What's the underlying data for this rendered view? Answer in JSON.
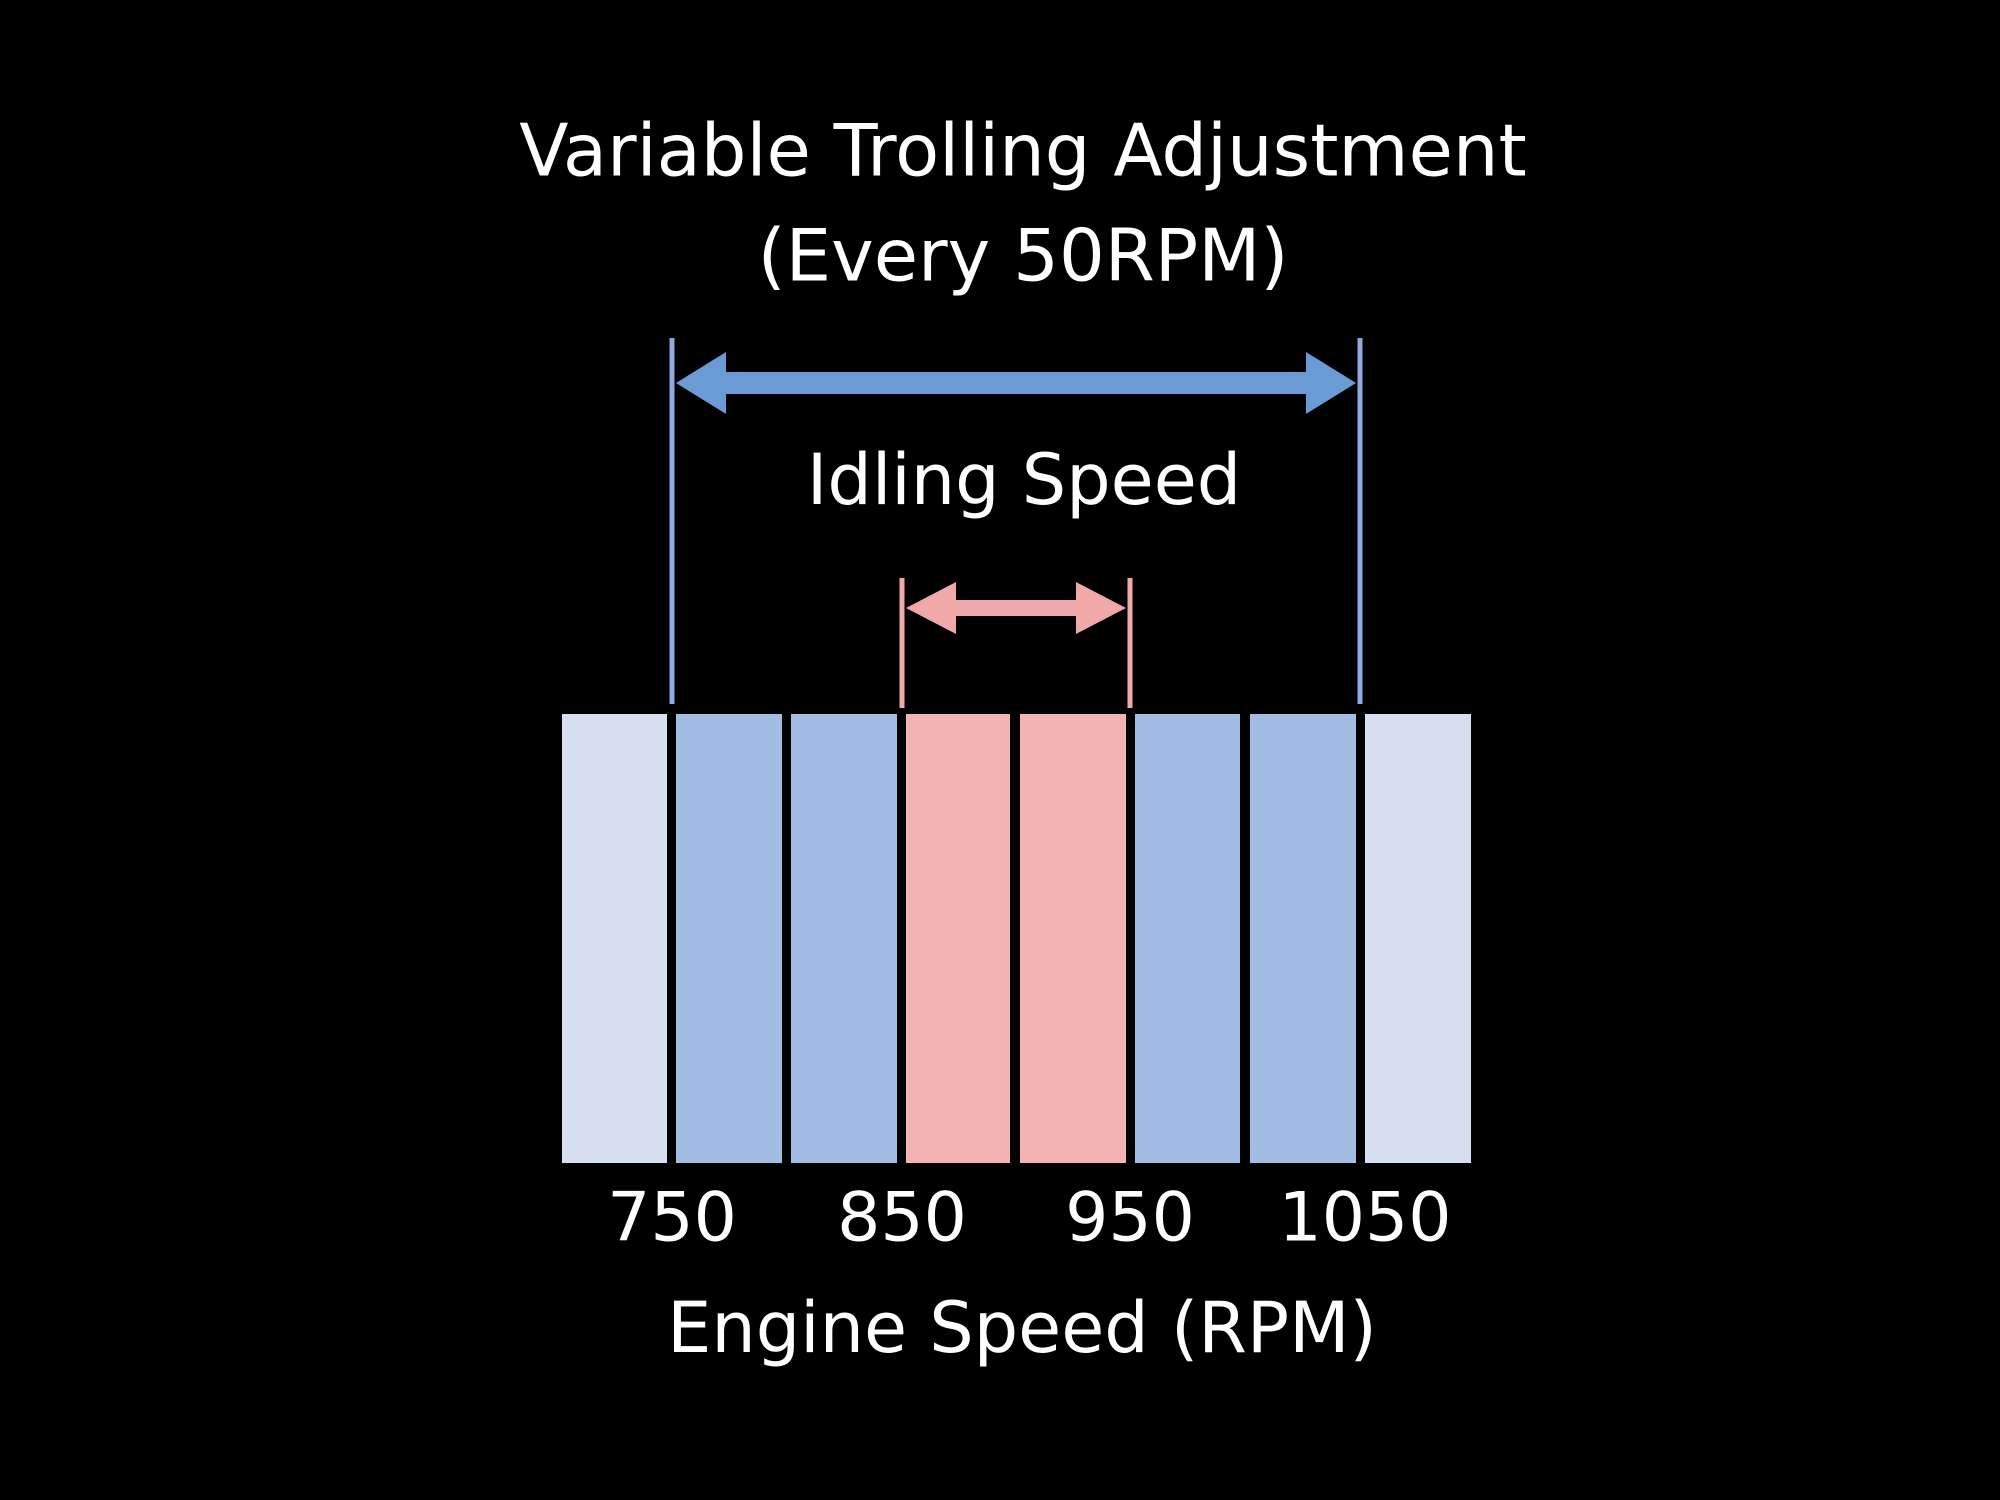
{
  "title": {
    "line1": "Variable Trolling Adjustment",
    "line2": "(Every 50RPM)"
  },
  "inner_label": "Idling Speed",
  "axis": {
    "ticks": [
      "750",
      "850",
      "950",
      "1050"
    ],
    "label": "Engine Speed (RPM)"
  }
}
